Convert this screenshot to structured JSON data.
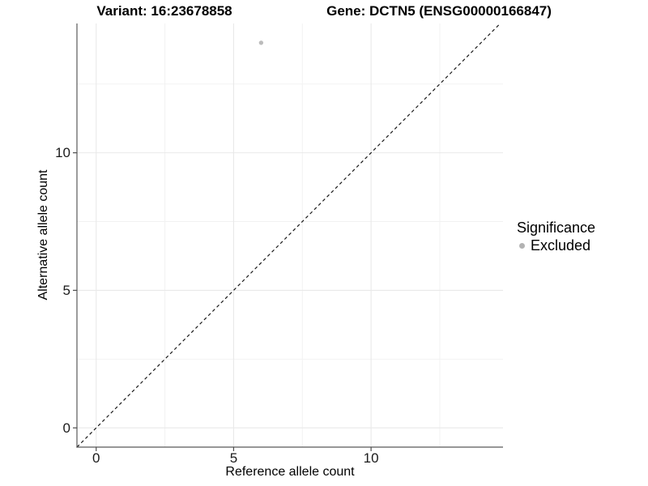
{
  "figure": {
    "title_left": "Variant: 16:23678858",
    "title_right": "Gene: DCTN5 (ENSG00000166847)"
  },
  "chart_data": {
    "type": "scatter",
    "title_left": "Variant: 16:23678858",
    "title_right": "Gene: DCTN5 (ENSG00000166847)",
    "xlabel": "Reference allele count",
    "ylabel": "Alternative allele count",
    "xlim": [
      -0.7,
      14.8
    ],
    "ylim": [
      -0.7,
      14.7
    ],
    "x_ticks": {
      "values": [
        0,
        5,
        10
      ],
      "labels": [
        "0",
        "5",
        "10"
      ]
    },
    "y_ticks": {
      "values": [
        0,
        5,
        10
      ],
      "labels": [
        "0",
        "5",
        "10"
      ]
    },
    "x_minor_ticks": [
      2.5,
      7.5,
      12.5
    ],
    "y_minor_ticks": [
      2.5,
      7.5,
      12.5
    ],
    "grid": "major+minor",
    "series": [
      {
        "name": "Excluded",
        "color": "#bcbcbc",
        "points": [
          {
            "x": 6,
            "y": 14
          }
        ]
      }
    ],
    "identity_line": {
      "equation": "y = x",
      "style": "dashed",
      "color": "#111111"
    },
    "legend": {
      "title": "Significance",
      "position": "right",
      "entries": [
        {
          "label": "Excluded",
          "color": "#b3b3b3",
          "marker": "circle"
        }
      ]
    }
  },
  "colors": {
    "background": "#ffffff",
    "axis_line": "#595959",
    "tick_mark": "#4d4d4d",
    "grid_major": "#e9e9e9",
    "grid_minor": "#f2f2f2",
    "text": "#000000",
    "point": "#bcbcbc"
  }
}
